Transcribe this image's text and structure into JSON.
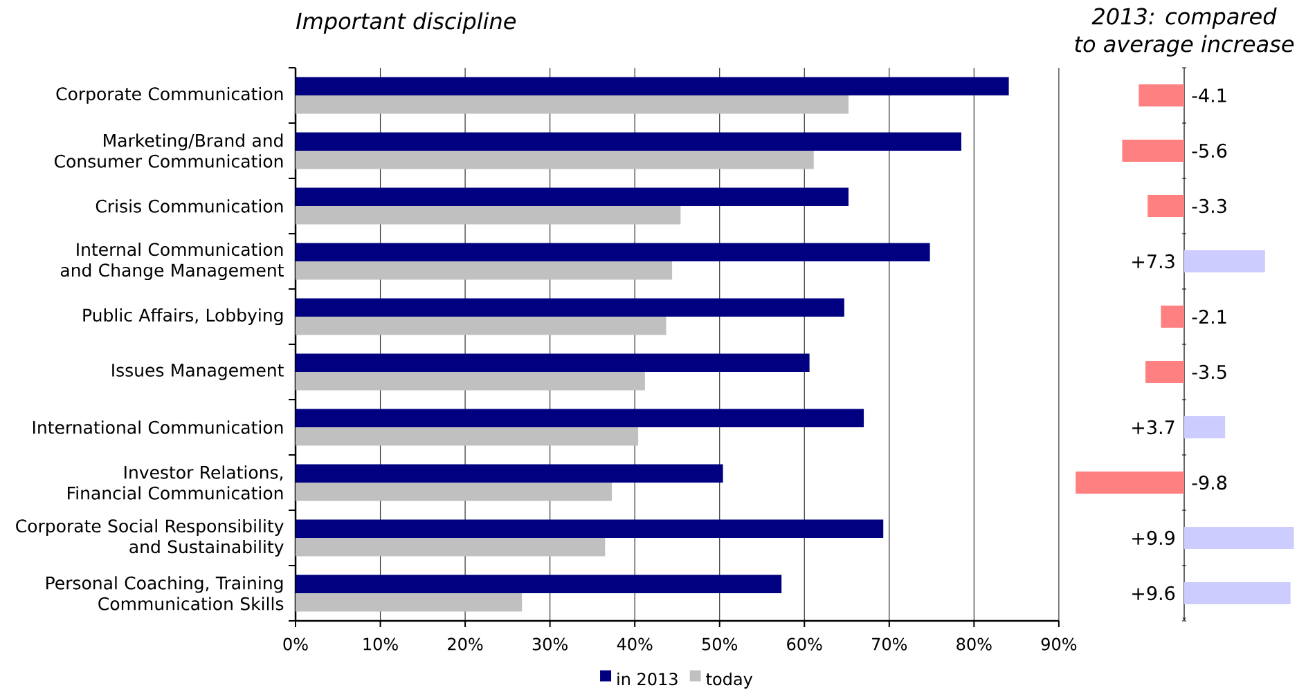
{
  "chart_data": [
    {
      "type": "bar",
      "orientation": "horizontal",
      "title": "Important discipline",
      "categories": [
        "Corporate Communication",
        "Marketing/Brand and\nConsumer Communication",
        "Crisis Communication",
        "Internal Communication\nand Change Management",
        "Public Affairs, Lobbying",
        "Issues Management",
        "International Communication",
        "Investor Relations,\nFinancial Communication",
        "Corporate Social Responsibility\nand Sustainability",
        "Personal Coaching, Training\nCommunication Skills"
      ],
      "series": [
        {
          "name": "in 2013",
          "color": "#000080",
          "values": [
            84.1,
            78.5,
            65.2,
            74.8,
            64.7,
            60.6,
            67.0,
            50.4,
            69.3,
            57.3
          ]
        },
        {
          "name": "today",
          "color": "#c0c0c0",
          "values": [
            65.2,
            61.1,
            45.4,
            44.4,
            43.7,
            41.2,
            40.4,
            37.3,
            36.5,
            26.7
          ]
        }
      ],
      "xlim": [
        0,
        90
      ],
      "xticks": [
        {
          "value": 0,
          "label": "0%"
        },
        {
          "value": 10,
          "label": "10%"
        },
        {
          "value": 20,
          "label": "20%"
        },
        {
          "value": 30,
          "label": "30%"
        },
        {
          "value": 40,
          "label": "40%"
        },
        {
          "value": 50,
          "label": "50%"
        },
        {
          "value": 60,
          "label": "60%"
        },
        {
          "value": 70,
          "label": "70%"
        },
        {
          "value": 80,
          "label": "80%"
        },
        {
          "value": 90,
          "label": "90%"
        }
      ],
      "grid": "x",
      "legend": "bottom"
    },
    {
      "type": "bar",
      "orientation": "horizontal",
      "title": "2013: compared\nto average increase",
      "categories": [
        null,
        null,
        null,
        null,
        null,
        null,
        null,
        null,
        null,
        null
      ],
      "values": [
        -4.1,
        -5.6,
        -3.3,
        7.3,
        -2.1,
        -3.5,
        3.7,
        -9.8,
        9.9,
        9.6
      ],
      "colors": [
        "#ff8080",
        "#ff8080",
        "#ff8080",
        "#ccccff",
        "#ff8080",
        "#ff8080",
        "#ccccff",
        "#ff8080",
        "#ccccff",
        "#ccccff"
      ],
      "value_labels": [
        "-4.1",
        "-5.6",
        "-3.3",
        "+7.3",
        "-2.1",
        "-3.5",
        "+3.7",
        "-9.8",
        "+9.9",
        "+9.6"
      ],
      "xlim": [
        -10,
        10
      ]
    }
  ]
}
